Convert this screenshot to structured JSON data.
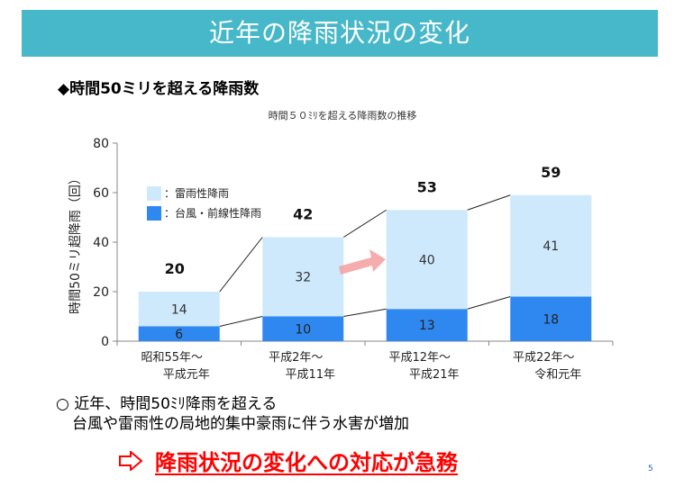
{
  "slide": {
    "title": "近年の降雨状況の変化",
    "heading": "◆時間50ミリを超える降雨数",
    "note_bullet": "○",
    "note_line1": "近年、時間50ﾐﾘ降雨を超える",
    "note_line2": "台風や雷雨性の局地的集中豪雨に伴う水害が増加",
    "conclusion": "降雨状況の変化への対応が急務",
    "page_number": "5"
  },
  "chart_data": {
    "type": "bar",
    "stacked": true,
    "title": "時間５０ﾐﾘを超える降雨数の推移",
    "ylabel": "時間50ミリ超降雨（回）",
    "ylim": [
      0,
      80
    ],
    "yticks": [
      0,
      20,
      40,
      60,
      80
    ],
    "categories": [
      [
        "昭和55年～",
        "平成元年"
      ],
      [
        "平成2年～",
        "平成11年"
      ],
      [
        "平成12年～",
        "平成21年"
      ],
      [
        "平成22年～",
        "令和元年"
      ]
    ],
    "series": [
      {
        "name": "：台風・前線性降雨",
        "color": "#2f88f0",
        "values": [
          6,
          10,
          13,
          18
        ]
      },
      {
        "name": "：雷雨性降雨",
        "color": "#cde9fb",
        "values": [
          14,
          32,
          40,
          41
        ]
      }
    ],
    "totals": [
      20,
      42,
      53,
      59
    ],
    "legend_position": "top-left"
  }
}
